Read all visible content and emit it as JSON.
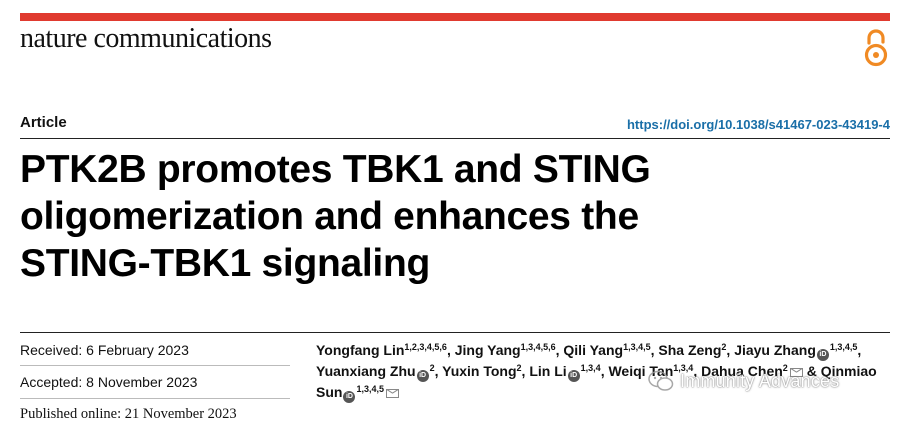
{
  "journal": {
    "name": "nature communications"
  },
  "article": {
    "type": "Article",
    "doi": "https://doi.org/10.1038/s41467-023-43419-4",
    "title_lines": [
      "PTK2B promotes TBK1 and STING",
      "oligomerization and enhances the",
      "STING-TBK1 signaling"
    ]
  },
  "dates": {
    "received": "Received: 6 February 2023",
    "accepted": "Accepted: 8 November 2023",
    "published": "Published online: 21 November 2023"
  },
  "authors": [
    {
      "name": "Yongfang Lin",
      "aff": "1,2,3,4,5,6",
      "orcid": false,
      "corresponding": false
    },
    {
      "name": "Jing Yang",
      "aff": "1,3,4,5,6",
      "orcid": false,
      "corresponding": false
    },
    {
      "name": "Qili Yang",
      "aff": "1,3,4,5",
      "orcid": false,
      "corresponding": false
    },
    {
      "name": "Sha Zeng",
      "aff": "2",
      "orcid": false,
      "corresponding": false
    },
    {
      "name": "Jiayu Zhang",
      "aff": "1,3,4,5",
      "orcid": true,
      "corresponding": false
    },
    {
      "name": "Yuanxiang Zhu",
      "aff": "2",
      "orcid": true,
      "corresponding": false
    },
    {
      "name": "Yuxin Tong",
      "aff": "2",
      "orcid": false,
      "corresponding": false
    },
    {
      "name": "Lin Li",
      "aff": "1,3,4",
      "orcid": true,
      "corresponding": false
    },
    {
      "name": "Weiqi Tan",
      "aff": "1,3,4",
      "orcid": false,
      "corresponding": false
    },
    {
      "name": "Dahua Chen",
      "aff": "2",
      "orcid": false,
      "corresponding": true
    },
    {
      "name": "Qinmiao Sun",
      "aff": "1,3,4,5",
      "orcid": true,
      "corresponding": true
    }
  ],
  "watermark": {
    "text": "Immunity Advances"
  },
  "icons": {
    "open_access": "open-access-icon",
    "orcid": "orcid-icon",
    "mail": "mail-icon",
    "wechat": "wechat-icon"
  },
  "colors": {
    "accent_bar": "#e03a2f",
    "open_access": "#f08a24",
    "doi_link": "#1a6fa8"
  }
}
